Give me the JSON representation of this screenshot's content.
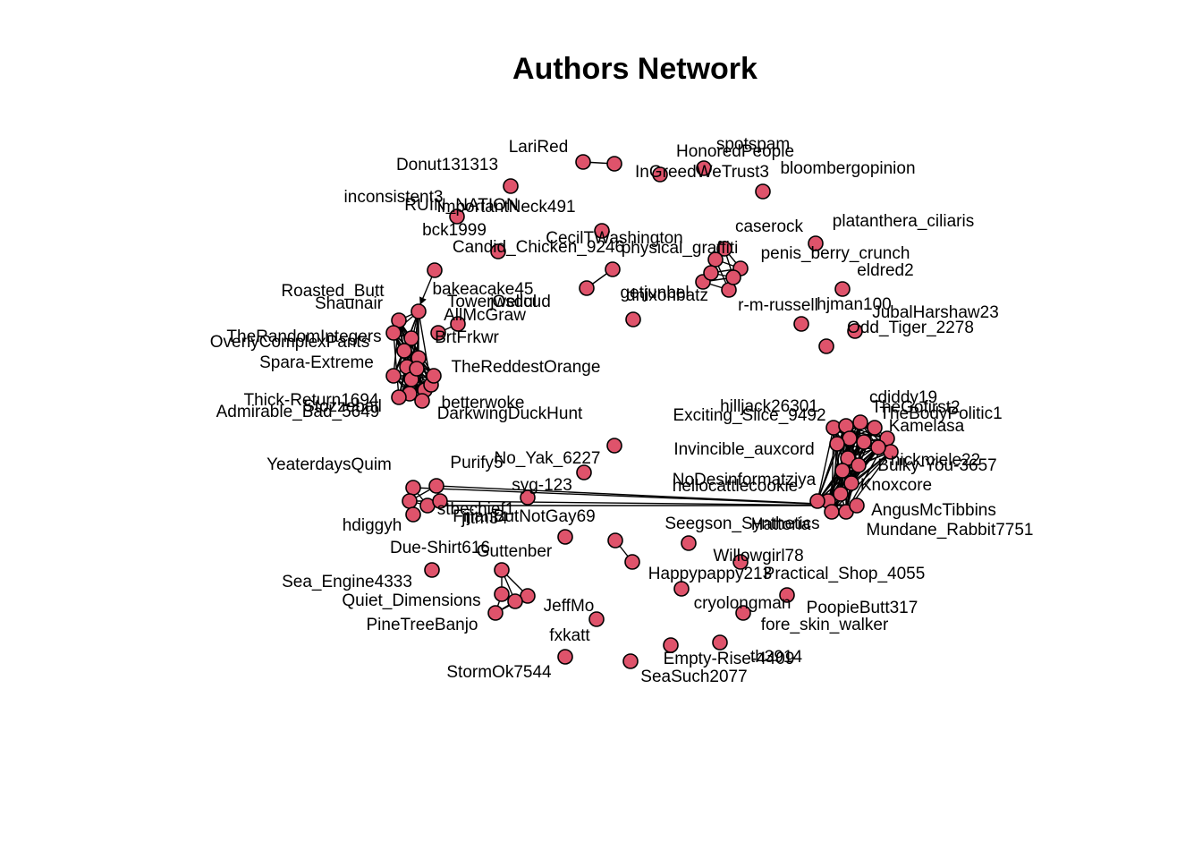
{
  "title": "Authors Network",
  "node_color": "#DF536B",
  "edge_color": "#000000",
  "labels": [
    "Donut131313",
    "LariRed",
    "HonoredPeople",
    "spotspam",
    "InGreedWeTrust3",
    "bloombergopinion",
    "inconsistent3",
    "RUIN_NATION",
    "ImportantNeck491",
    "bck1999",
    "CecilTWashington",
    "Candid_Chicken_9246",
    "physical_graffiti",
    "caserock",
    "platanthera_ciliaris",
    "penis_berry_crunch",
    "eldred2",
    "Roasted_Butt",
    "bakeacake45",
    "Shaunair",
    "TowerOsdul",
    "jwellcud",
    "AllMcGraw",
    "getjunbel",
    "dnixonbatz",
    "r-m-russell",
    "hjman100",
    "JubalHarshaw23",
    "Odd_Tiger_2278",
    "TheRandomIntegers",
    "OverlyComplexPants",
    "BrtFrkwr",
    "Spara-Extreme",
    "TheReddestOrange",
    "Thick-Return1694",
    "Stozzeball",
    "Admirable_Bad_5649",
    "betterwoke",
    "DarkwingDuckHunt",
    "hilljack26301",
    "cdiddy19",
    "Exciting_Slice_9492",
    "TheGofirst2",
    "TheBodyPolitic1",
    "Kamelasa",
    "Invincible_auxcord",
    "nickmiele22",
    "Bulky-You-3657",
    "YeaterdaysQuim",
    "Purify5",
    "No_Yak_6227",
    "syg-123",
    "NoDesinformatziya",
    "hellocattlecookie",
    "Knoxcore",
    "stbechief1",
    "FijianButNotGay69",
    "jttm34",
    "AngusMcTibbins",
    "hdiggyh",
    "Mundane_Rabbit7751",
    "Seegson_Synthetics",
    "Hattoria",
    "Due-Shirt616",
    "Guttenber",
    "Willowgirl78",
    "Sea_Engine4333",
    "Happypappy213",
    "Practical_Shop_4055",
    "Quiet_Dimensions",
    "JeffMo",
    "cryolongman",
    "PoopieButt317",
    "PineTreeBanjo",
    "fore_skin_walker",
    "fxkatt",
    "Empty-Rise-4409",
    "th3914",
    "StormOk7544",
    "SeaSuch2077"
  ]
}
